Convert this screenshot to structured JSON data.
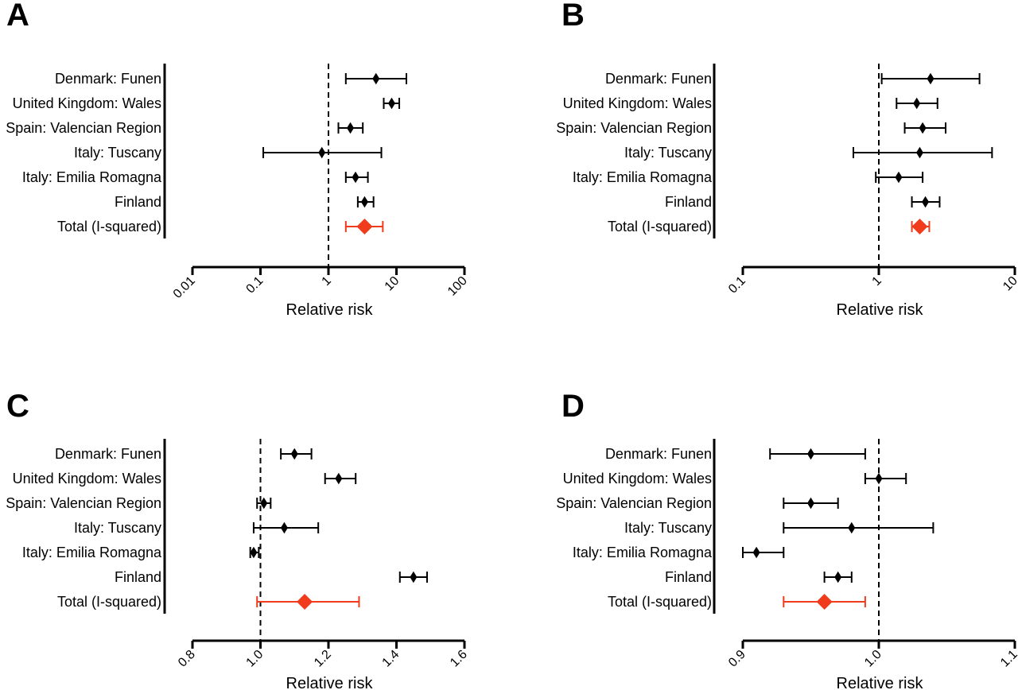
{
  "chart_data": [
    {
      "panel": "A",
      "type": "forest",
      "scale": "log",
      "xlabel": "Relative risk",
      "xlim": [
        0.01,
        100
      ],
      "ticks": [
        0.01,
        0.1,
        1,
        10,
        100
      ],
      "tick_labels": [
        "0.01",
        "0.1",
        "1",
        "10",
        "100"
      ],
      "reference": 1,
      "categories": [
        "Denmark: Funen",
        "United Kingdom: Wales",
        "Spain: Valencian Region",
        "Italy: Tuscany",
        "Italy: Emilia Romagna",
        "Finland",
        "Total (I-squared)"
      ],
      "estimates": [
        5.0,
        8.5,
        2.1,
        0.8,
        2.5,
        3.4,
        3.4
      ],
      "lower": [
        1.8,
        6.5,
        1.4,
        0.11,
        1.8,
        2.7,
        1.8
      ],
      "upper": [
        14.0,
        11.0,
        3.2,
        6.0,
        3.8,
        4.6,
        6.3
      ],
      "colors": [
        "#000000",
        "#000000",
        "#000000",
        "#000000",
        "#000000",
        "#000000",
        "#f03c1c"
      ]
    },
    {
      "panel": "B",
      "type": "forest",
      "scale": "log",
      "xlabel": "Relative risk",
      "xlim": [
        0.1,
        10
      ],
      "ticks": [
        0.1,
        1,
        10
      ],
      "tick_labels": [
        "0.1",
        "1",
        "10"
      ],
      "reference": 1,
      "categories": [
        "Denmark: Funen",
        "United Kingdom: Wales",
        "Spain: Valencian Region",
        "Italy: Tuscany",
        "Italy: Emilia Romagna",
        "Finland",
        "Total (I-squared)"
      ],
      "estimates": [
        2.4,
        1.9,
        2.1,
        2.0,
        1.4,
        2.2,
        2.0
      ],
      "lower": [
        1.05,
        1.35,
        1.55,
        0.65,
        0.95,
        1.75,
        1.75
      ],
      "upper": [
        5.5,
        2.7,
        3.1,
        6.8,
        2.1,
        2.8,
        2.35
      ],
      "colors": [
        "#000000",
        "#000000",
        "#000000",
        "#000000",
        "#000000",
        "#000000",
        "#f03c1c"
      ]
    },
    {
      "panel": "C",
      "type": "forest",
      "scale": "linear",
      "xlabel": "Relative risk",
      "xlim": [
        0.8,
        1.6
      ],
      "ticks": [
        0.8,
        1.0,
        1.2,
        1.4,
        1.6
      ],
      "tick_labels": [
        "0.8",
        "1.0",
        "1.2",
        "1.4",
        "1.6"
      ],
      "reference": 1.0,
      "categories": [
        "Denmark: Funen",
        "United Kingdom: Wales",
        "Spain: Valencian Region",
        "Italy: Tuscany",
        "Italy: Emilia Romagna",
        "Finland",
        "Total (I-squared)"
      ],
      "estimates": [
        1.1,
        1.23,
        1.01,
        1.07,
        0.98,
        1.45,
        1.13
      ],
      "lower": [
        1.06,
        1.19,
        0.99,
        0.98,
        0.97,
        1.41,
        0.99
      ],
      "upper": [
        1.15,
        1.28,
        1.03,
        1.17,
        0.995,
        1.49,
        1.29
      ],
      "colors": [
        "#000000",
        "#000000",
        "#000000",
        "#000000",
        "#000000",
        "#000000",
        "#f03c1c"
      ]
    },
    {
      "panel": "D",
      "type": "forest",
      "scale": "linear",
      "xlabel": "Relative risk",
      "xlim": [
        0.9,
        1.1
      ],
      "ticks": [
        0.9,
        1.0,
        1.1
      ],
      "tick_labels": [
        "0.9",
        "1.0",
        "1.1"
      ],
      "reference": 1.0,
      "categories": [
        "Denmark: Funen",
        "United Kingdom: Wales",
        "Spain: Valencian Region",
        "Italy: Tuscany",
        "Italy: Emilia Romagna",
        "Finland",
        "Total (I-squared)"
      ],
      "estimates": [
        0.95,
        1.0,
        0.95,
        0.98,
        0.91,
        0.97,
        0.96
      ],
      "lower": [
        0.92,
        0.99,
        0.93,
        0.93,
        0.9,
        0.96,
        0.93
      ],
      "upper": [
        0.99,
        1.02,
        0.97,
        1.04,
        0.93,
        0.98,
        0.99
      ],
      "colors": [
        "#000000",
        "#000000",
        "#000000",
        "#000000",
        "#000000",
        "#000000",
        "#f03c1c"
      ]
    }
  ]
}
